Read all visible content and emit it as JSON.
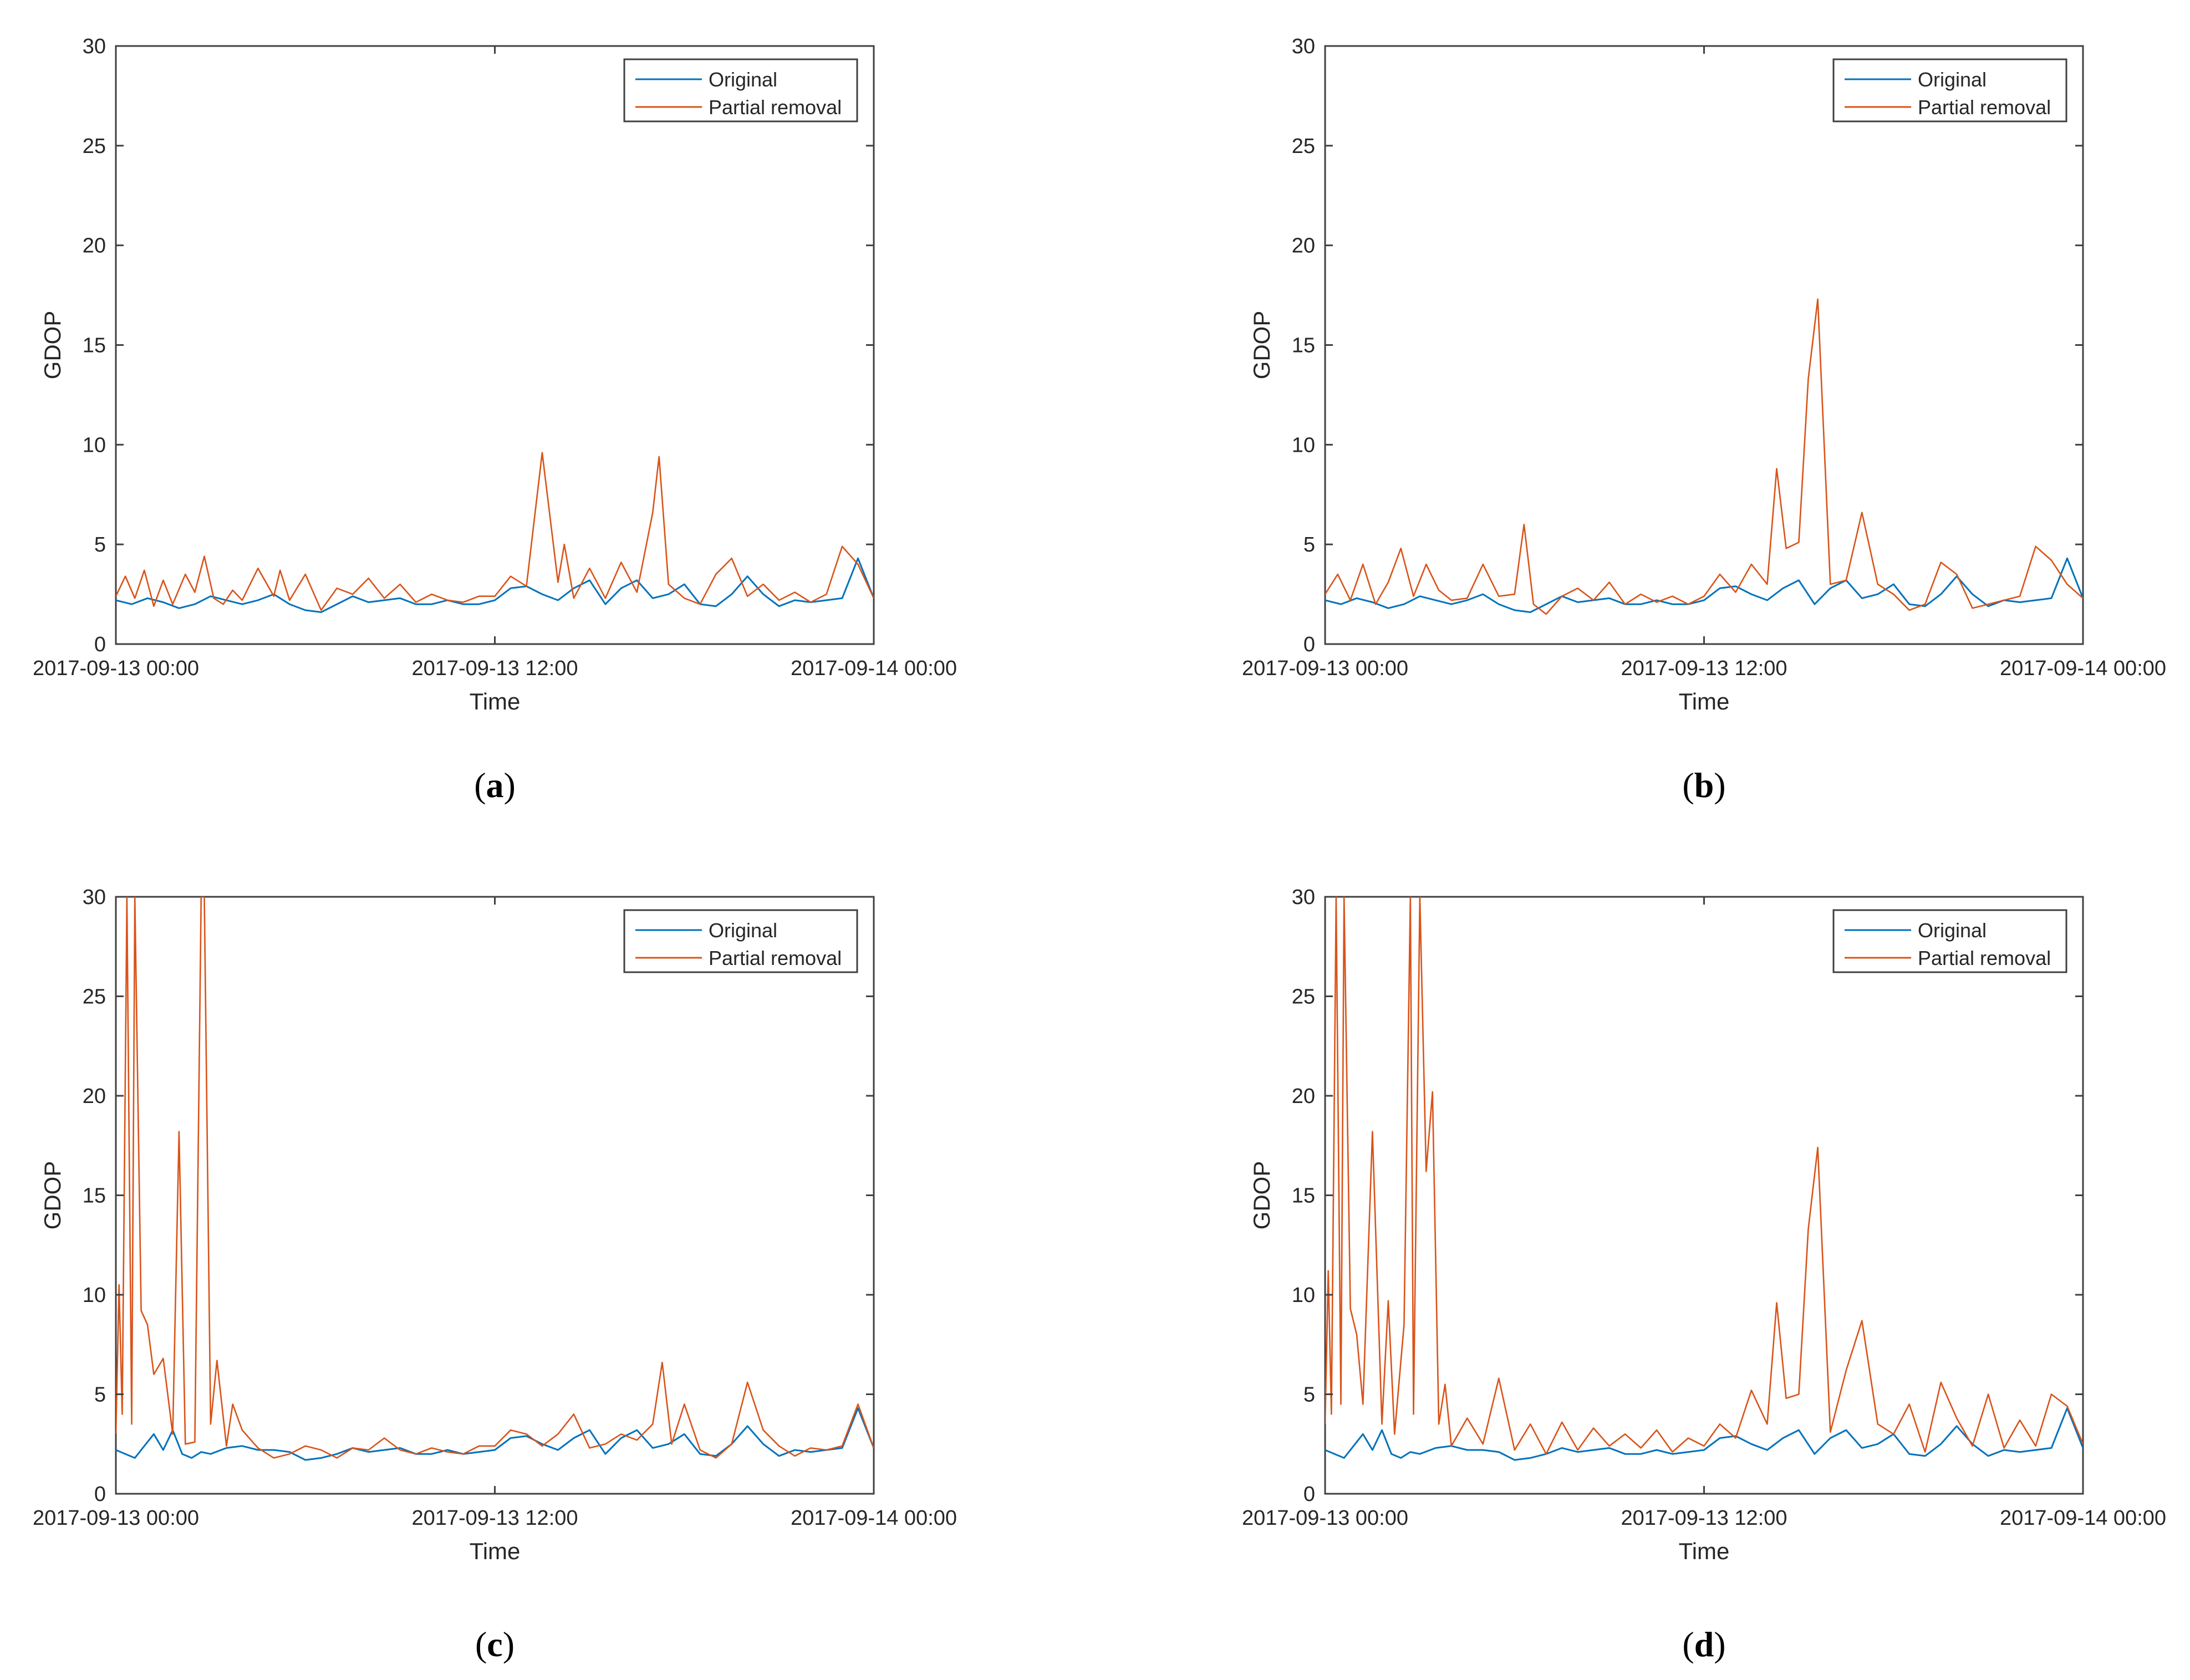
{
  "figure": {
    "panels": [
      {
        "id": "a",
        "caption_open": "(",
        "caption_letter": "a",
        "caption_close": ")"
      },
      {
        "id": "b",
        "caption_open": "(",
        "caption_letter": "b",
        "caption_close": ")"
      },
      {
        "id": "c",
        "caption_open": "(",
        "caption_letter": "c",
        "caption_close": ")"
      },
      {
        "id": "d",
        "caption_open": "(",
        "caption_letter": "d",
        "caption_close": ")"
      }
    ]
  },
  "colors": {
    "original": "#0072BD",
    "partial_removal": "#D95319",
    "axis": "#404040",
    "text": "#262626"
  },
  "chart_data": [
    {
      "type": "line",
      "panel": "a",
      "title": "",
      "xlabel": "Time",
      "ylabel": "GDOP",
      "xlim": [
        0,
        24
      ],
      "ylim": [
        0,
        30
      ],
      "xticks": [
        0,
        12,
        24
      ],
      "xtick_labels": [
        "2017-09-13 00:00",
        "2017-09-13 12:00",
        "2017-09-14 00:00"
      ],
      "yticks": [
        0,
        5,
        10,
        15,
        20,
        25,
        30
      ],
      "ytick_labels": [
        "0",
        "5",
        "10",
        "15",
        "20",
        "25",
        "30"
      ],
      "legend": {
        "position": "top-right",
        "entries": [
          "Original",
          "Partial removal"
        ]
      },
      "series": [
        {
          "name": "Original",
          "x": [
            0,
            0.5,
            1.0,
            1.5,
            2.0,
            2.5,
            3.0,
            3.5,
            4.0,
            4.5,
            5.0,
            5.5,
            6.0,
            6.5,
            7.0,
            7.5,
            8.0,
            8.5,
            9.0,
            9.5,
            10.0,
            10.5,
            11.0,
            11.5,
            12.0,
            12.5,
            13.0,
            13.5,
            14.0,
            14.5,
            15.0,
            15.5,
            16.0,
            16.5,
            17.0,
            17.5,
            18.0,
            18.5,
            19.0,
            19.5,
            20.0,
            20.5,
            21.0,
            21.5,
            22.0,
            22.5,
            23.0,
            23.5,
            24.0
          ],
          "y": [
            2.2,
            2.0,
            2.3,
            2.1,
            1.8,
            2.0,
            2.4,
            2.2,
            2.0,
            2.2,
            2.5,
            2.0,
            1.7,
            1.6,
            2.0,
            2.4,
            2.1,
            2.2,
            2.3,
            2.0,
            2.0,
            2.2,
            2.0,
            2.0,
            2.2,
            2.8,
            2.9,
            2.5,
            2.2,
            2.8,
            3.2,
            2.0,
            2.8,
            3.2,
            2.3,
            2.5,
            3.0,
            2.0,
            1.9,
            2.5,
            3.4,
            2.5,
            1.9,
            2.2,
            2.1,
            2.2,
            2.3,
            4.3,
            2.3
          ]
        },
        {
          "name": "Partial removal",
          "x": [
            0,
            0.3,
            0.6,
            0.9,
            1.2,
            1.5,
            1.8,
            2.2,
            2.5,
            2.8,
            3.1,
            3.4,
            3.7,
            4.0,
            4.5,
            5.0,
            5.2,
            5.5,
            6.0,
            6.5,
            7.0,
            7.5,
            8.0,
            8.5,
            9.0,
            9.5,
            10.0,
            10.5,
            11.0,
            11.5,
            12.0,
            12.5,
            13.0,
            13.5,
            14.0,
            14.2,
            14.5,
            15.0,
            15.5,
            16.0,
            16.5,
            17.0,
            17.2,
            17.5,
            18.0,
            18.5,
            19.0,
            19.5,
            20.0,
            20.5,
            21.0,
            21.5,
            22.0,
            22.5,
            23.0,
            23.5,
            24.0
          ],
          "y": [
            2.4,
            3.4,
            2.3,
            3.7,
            1.9,
            3.2,
            2.0,
            3.5,
            2.6,
            4.4,
            2.3,
            2.0,
            2.7,
            2.2,
            3.8,
            2.4,
            3.7,
            2.2,
            3.5,
            1.7,
            2.8,
            2.5,
            3.3,
            2.3,
            3.0,
            2.1,
            2.5,
            2.2,
            2.1,
            2.4,
            2.4,
            3.4,
            2.9,
            9.6,
            3.1,
            5.0,
            2.3,
            3.8,
            2.3,
            4.1,
            2.6,
            6.6,
            9.4,
            3.0,
            2.3,
            2.0,
            3.5,
            4.3,
            2.4,
            3.0,
            2.2,
            2.6,
            2.1,
            2.5,
            4.9,
            4.0,
            2.3
          ]
        }
      ]
    },
    {
      "type": "line",
      "panel": "b",
      "title": "",
      "xlabel": "Time",
      "ylabel": "GDOP",
      "xlim": [
        0,
        24
      ],
      "ylim": [
        0,
        30
      ],
      "xticks": [
        0,
        12,
        24
      ],
      "xtick_labels": [
        "2017-09-13 00:00",
        "2017-09-13 12:00",
        "2017-09-14 00:00"
      ],
      "yticks": [
        0,
        5,
        10,
        15,
        20,
        25,
        30
      ],
      "ytick_labels": [
        "0",
        "5",
        "10",
        "15",
        "20",
        "25",
        "30"
      ],
      "legend": {
        "position": "top-right",
        "entries": [
          "Original",
          "Partial removal"
        ]
      },
      "series": [
        {
          "name": "Original",
          "x": [
            0,
            0.5,
            1.0,
            1.5,
            2.0,
            2.5,
            3.0,
            3.5,
            4.0,
            4.5,
            5.0,
            5.5,
            6.0,
            6.5,
            7.0,
            7.5,
            8.0,
            8.5,
            9.0,
            9.5,
            10.0,
            10.5,
            11.0,
            11.5,
            12.0,
            12.5,
            13.0,
            13.5,
            14.0,
            14.5,
            15.0,
            15.5,
            16.0,
            16.5,
            17.0,
            17.5,
            18.0,
            18.5,
            19.0,
            19.5,
            20.0,
            20.5,
            21.0,
            21.5,
            22.0,
            22.5,
            23.0,
            23.5,
            24.0
          ],
          "y": [
            2.2,
            2.0,
            2.3,
            2.1,
            1.8,
            2.0,
            2.4,
            2.2,
            2.0,
            2.2,
            2.5,
            2.0,
            1.7,
            1.6,
            2.0,
            2.4,
            2.1,
            2.2,
            2.3,
            2.0,
            2.0,
            2.2,
            2.0,
            2.0,
            2.2,
            2.8,
            2.9,
            2.5,
            2.2,
            2.8,
            3.2,
            2.0,
            2.8,
            3.2,
            2.3,
            2.5,
            3.0,
            2.0,
            1.9,
            2.5,
            3.4,
            2.5,
            1.9,
            2.2,
            2.1,
            2.2,
            2.3,
            4.3,
            2.3
          ]
        },
        {
          "name": "Partial removal",
          "x": [
            0,
            0.4,
            0.8,
            1.2,
            1.6,
            2.0,
            2.4,
            2.8,
            3.2,
            3.6,
            4.0,
            4.5,
            5.0,
            5.5,
            6.0,
            6.3,
            6.6,
            7.0,
            7.5,
            8.0,
            8.5,
            9.0,
            9.5,
            10.0,
            10.5,
            11.0,
            11.5,
            12.0,
            12.5,
            13.0,
            13.5,
            14.0,
            14.3,
            14.6,
            15.0,
            15.3,
            15.6,
            16.0,
            16.5,
            17.0,
            17.5,
            18.0,
            18.5,
            19.0,
            19.5,
            20.0,
            20.5,
            21.0,
            21.5,
            22.0,
            22.5,
            23.0,
            23.5,
            24.0
          ],
          "y": [
            2.5,
            3.5,
            2.2,
            4.0,
            2.0,
            3.1,
            4.8,
            2.4,
            4.0,
            2.7,
            2.2,
            2.3,
            4.0,
            2.4,
            2.5,
            6.0,
            2.0,
            1.5,
            2.4,
            2.8,
            2.2,
            3.1,
            2.0,
            2.5,
            2.1,
            2.4,
            2.0,
            2.4,
            3.5,
            2.6,
            4.0,
            3.0,
            8.8,
            4.8,
            5.1,
            13.3,
            17.3,
            3.0,
            3.2,
            6.6,
            3.0,
            2.5,
            1.7,
            2.0,
            4.1,
            3.5,
            1.8,
            2.0,
            2.2,
            2.4,
            4.9,
            4.2,
            3.0,
            2.3
          ]
        }
      ]
    },
    {
      "type": "line",
      "panel": "c",
      "title": "",
      "xlabel": "Time",
      "ylabel": "GDOP",
      "xlim": [
        0,
        24
      ],
      "ylim": [
        0,
        30
      ],
      "xticks": [
        0,
        12,
        24
      ],
      "xtick_labels": [
        "2017-09-13 00:00",
        "2017-09-13 12:00",
        "2017-09-14 00:00"
      ],
      "yticks": [
        0,
        5,
        10,
        15,
        20,
        25,
        30
      ],
      "ytick_labels": [
        "0",
        "5",
        "10",
        "15",
        "20",
        "25",
        "30"
      ],
      "legend": {
        "position": "top-right",
        "entries": [
          "Original",
          "Partial removal"
        ]
      },
      "series": [
        {
          "name": "Original",
          "x": [
            0,
            0.3,
            0.6,
            0.9,
            1.2,
            1.5,
            1.8,
            2.1,
            2.4,
            2.7,
            3.0,
            3.5,
            4.0,
            4.5,
            5.0,
            5.5,
            6.0,
            6.5,
            7.0,
            7.5,
            8.0,
            8.5,
            9.0,
            9.5,
            10.0,
            10.5,
            11.0,
            11.5,
            12.0,
            12.5,
            13.0,
            13.5,
            14.0,
            14.5,
            15.0,
            15.5,
            16.0,
            16.5,
            17.0,
            17.5,
            18.0,
            18.5,
            19.0,
            19.5,
            20.0,
            20.5,
            21.0,
            21.5,
            22.0,
            22.5,
            23.0,
            23.5,
            24.0
          ],
          "y": [
            2.2,
            2.0,
            1.8,
            2.4,
            3.0,
            2.2,
            3.2,
            2.0,
            1.8,
            2.1,
            2.0,
            2.3,
            2.4,
            2.2,
            2.2,
            2.1,
            1.7,
            1.8,
            2.0,
            2.3,
            2.1,
            2.2,
            2.3,
            2.0,
            2.0,
            2.2,
            2.0,
            2.1,
            2.2,
            2.8,
            2.9,
            2.5,
            2.2,
            2.8,
            3.2,
            2.0,
            2.8,
            3.2,
            2.3,
            2.5,
            3.0,
            2.0,
            1.9,
            2.5,
            3.4,
            2.5,
            1.9,
            2.2,
            2.1,
            2.2,
            2.3,
            4.3,
            2.3
          ]
        },
        {
          "name": "Partial removal",
          "x": [
            0,
            0.1,
            0.2,
            0.35,
            0.5,
            0.6,
            0.8,
            1.0,
            1.2,
            1.5,
            1.8,
            2.0,
            2.2,
            2.5,
            2.7,
            2.8,
            3.0,
            3.2,
            3.5,
            3.7,
            4.0,
            4.5,
            5.0,
            5.5,
            6.0,
            6.5,
            7.0,
            7.5,
            8.0,
            8.5,
            9.0,
            9.5,
            10.0,
            10.5,
            11.0,
            11.5,
            12.0,
            12.5,
            13.0,
            13.5,
            14.0,
            14.5,
            15.0,
            15.5,
            16.0,
            16.5,
            17.0,
            17.3,
            17.6,
            18.0,
            18.5,
            19.0,
            19.5,
            20.0,
            20.5,
            21.0,
            21.5,
            22.0,
            22.5,
            23.0,
            23.5,
            24.0
          ],
          "y": [
            3.0,
            10.5,
            4.0,
            30,
            3.5,
            30,
            9.2,
            8.5,
            6.0,
            6.8,
            3.0,
            18.2,
            2.5,
            2.6,
            30,
            30,
            3.5,
            6.7,
            2.4,
            4.5,
            3.2,
            2.3,
            1.8,
            2.0,
            2.4,
            2.2,
            1.8,
            2.3,
            2.2,
            2.8,
            2.2,
            2.0,
            2.3,
            2.1,
            2.0,
            2.4,
            2.4,
            3.2,
            3.0,
            2.4,
            3.0,
            4.0,
            2.3,
            2.5,
            3.0,
            2.7,
            3.5,
            6.6,
            2.5,
            4.5,
            2.2,
            1.8,
            2.5,
            5.6,
            3.2,
            2.4,
            1.9,
            2.3,
            2.2,
            2.4,
            4.5,
            2.3
          ]
        }
      ]
    },
    {
      "type": "line",
      "panel": "d",
      "title": "",
      "xlabel": "Time",
      "ylabel": "GDOP",
      "xlim": [
        0,
        24
      ],
      "ylim": [
        0,
        30
      ],
      "xticks": [
        0,
        12,
        24
      ],
      "xtick_labels": [
        "2017-09-13 00:00",
        "2017-09-13 12:00",
        "2017-09-14 00:00"
      ],
      "yticks": [
        0,
        5,
        10,
        15,
        20,
        25,
        30
      ],
      "ytick_labels": [
        "0",
        "5",
        "10",
        "15",
        "20",
        "25",
        "30"
      ],
      "legend": {
        "position": "top-right",
        "entries": [
          "Original",
          "Partial removal"
        ]
      },
      "series": [
        {
          "name": "Original",
          "x": [
            0,
            0.3,
            0.6,
            0.9,
            1.2,
            1.5,
            1.8,
            2.1,
            2.4,
            2.7,
            3.0,
            3.5,
            4.0,
            4.5,
            5.0,
            5.5,
            6.0,
            6.5,
            7.0,
            7.5,
            8.0,
            8.5,
            9.0,
            9.5,
            10.0,
            10.5,
            11.0,
            11.5,
            12.0,
            12.5,
            13.0,
            13.5,
            14.0,
            14.5,
            15.0,
            15.5,
            16.0,
            16.5,
            17.0,
            17.5,
            18.0,
            18.5,
            19.0,
            19.5,
            20.0,
            20.5,
            21.0,
            21.5,
            22.0,
            22.5,
            23.0,
            23.5,
            24.0
          ],
          "y": [
            2.2,
            2.0,
            1.8,
            2.4,
            3.0,
            2.2,
            3.2,
            2.0,
            1.8,
            2.1,
            2.0,
            2.3,
            2.4,
            2.2,
            2.2,
            2.1,
            1.7,
            1.8,
            2.0,
            2.3,
            2.1,
            2.2,
            2.3,
            2.0,
            2.0,
            2.2,
            2.0,
            2.1,
            2.2,
            2.8,
            2.9,
            2.5,
            2.2,
            2.8,
            3.2,
            2.0,
            2.8,
            3.2,
            2.3,
            2.5,
            3.0,
            2.0,
            1.9,
            2.5,
            3.4,
            2.5,
            1.9,
            2.2,
            2.1,
            2.2,
            2.3,
            4.3,
            2.3
          ]
        },
        {
          "name": "Partial removal",
          "x": [
            0,
            0.1,
            0.2,
            0.35,
            0.5,
            0.6,
            0.8,
            1.0,
            1.2,
            1.5,
            1.8,
            2.0,
            2.2,
            2.5,
            2.7,
            2.8,
            3.0,
            3.2,
            3.4,
            3.6,
            3.8,
            4.0,
            4.5,
            5.0,
            5.5,
            6.0,
            6.5,
            7.0,
            7.5,
            8.0,
            8.5,
            9.0,
            9.5,
            10.0,
            10.5,
            11.0,
            11.5,
            12.0,
            12.5,
            13.0,
            13.5,
            14.0,
            14.3,
            14.6,
            15.0,
            15.3,
            15.6,
            16.0,
            16.5,
            17.0,
            17.5,
            18.0,
            18.5,
            19.0,
            19.5,
            20.0,
            20.5,
            21.0,
            21.5,
            22.0,
            22.5,
            23.0,
            23.5,
            24.0
          ],
          "y": [
            3.5,
            11.2,
            4.0,
            30,
            4.5,
            30,
            9.3,
            8.0,
            4.5,
            18.2,
            3.5,
            9.7,
            3.0,
            8.5,
            30,
            4.0,
            30,
            16.2,
            20.2,
            3.5,
            5.5,
            2.4,
            3.8,
            2.5,
            5.8,
            2.2,
            3.5,
            2.0,
            3.6,
            2.2,
            3.3,
            2.4,
            3.0,
            2.3,
            3.2,
            2.1,
            2.8,
            2.4,
            3.5,
            2.8,
            5.2,
            3.5,
            9.6,
            4.8,
            5.0,
            13.3,
            17.4,
            3.1,
            6.2,
            8.7,
            3.5,
            3.0,
            4.5,
            2.1,
            5.6,
            3.8,
            2.4,
            5.0,
            2.3,
            3.7,
            2.4,
            5.0,
            4.4,
            2.5
          ]
        }
      ]
    }
  ]
}
